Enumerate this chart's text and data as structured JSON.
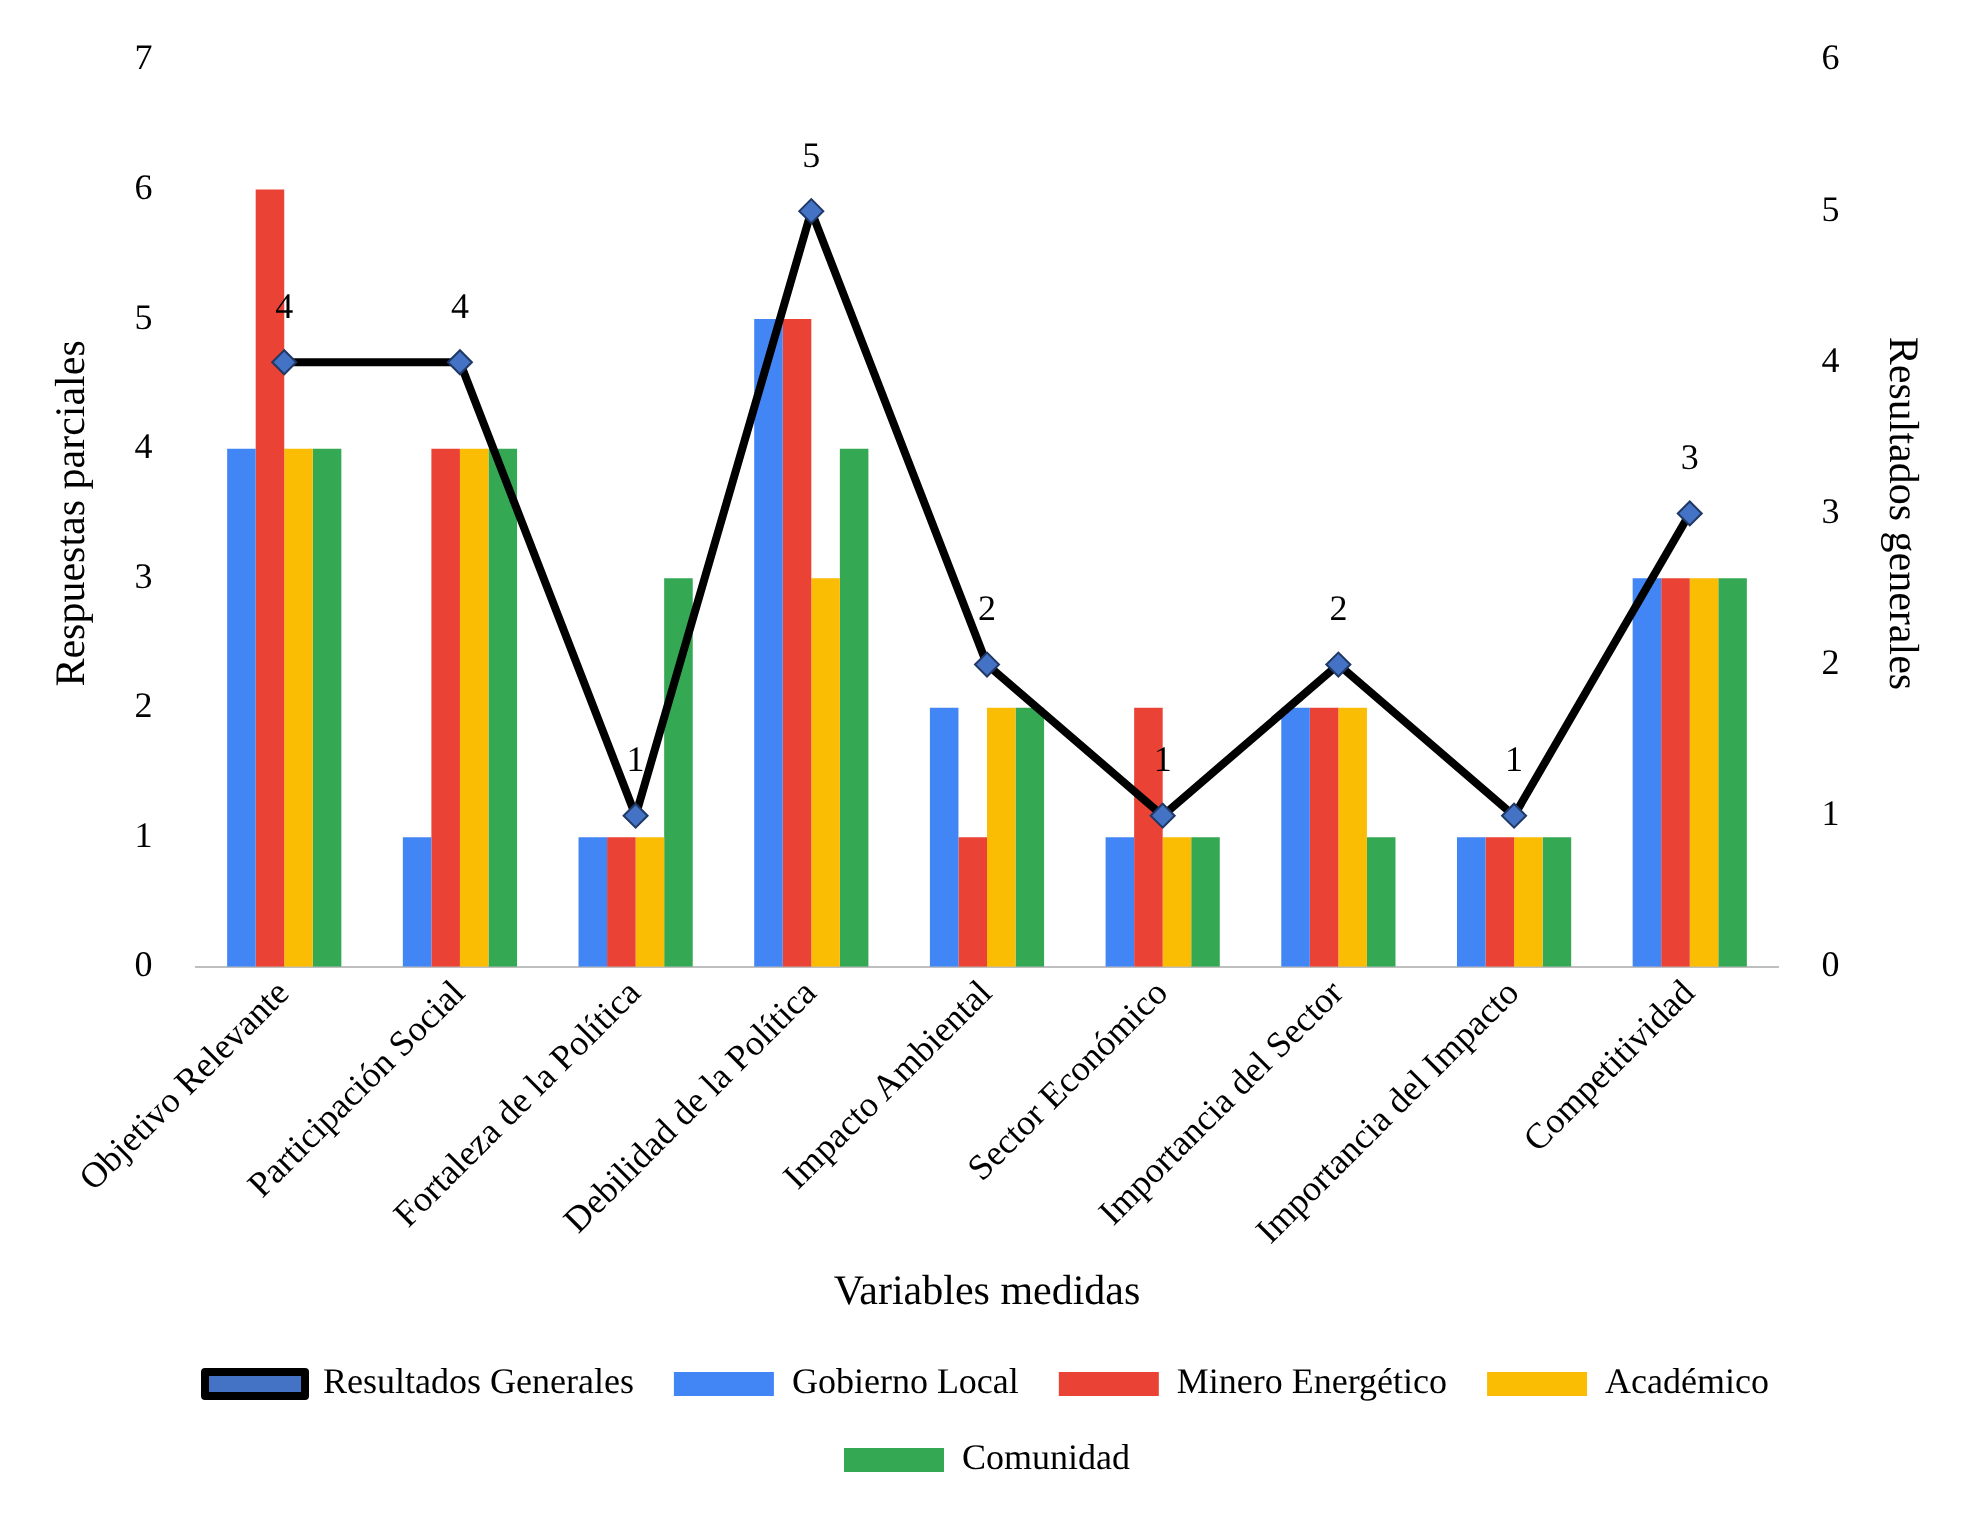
{
  "chart_data": {
    "type": "bar",
    "xlabel": "Variables medidas",
    "ylabel": "Respuestas parciales",
    "y2label": "Resultados generales",
    "categories": [
      "Objetivo Relevante",
      "Participación Social",
      "Fortaleza de la Política",
      "Debilidad de la Política",
      "Impacto Ambiental",
      "Sector Económico",
      "Importancia del Sector",
      "Importancia del Impacto",
      "Competitividad"
    ],
    "series": [
      {
        "name": "Gobierno Local",
        "color": "#4285f4",
        "values": [
          4,
          1,
          1,
          5,
          2,
          1,
          2,
          1,
          3
        ]
      },
      {
        "name": "Minero Energético",
        "color": "#ea4335",
        "values": [
          6,
          4,
          1,
          5,
          1,
          2,
          2,
          1,
          3
        ]
      },
      {
        "name": "Académico",
        "color": "#fbbc04",
        "values": [
          4,
          4,
          1,
          3,
          2,
          1,
          2,
          1,
          3
        ]
      },
      {
        "name": "Comunidad",
        "color": "#34a853",
        "values": [
          4,
          4,
          3,
          4,
          2,
          1,
          1,
          1,
          3
        ]
      },
      {
        "name": "Resultados Generales",
        "type": "line",
        "axis": "y2",
        "color": "#000000",
        "values": [
          4,
          4,
          1,
          5,
          2,
          1,
          2,
          1,
          3
        ],
        "value_labels": [
          "4",
          "4",
          "1",
          "5",
          "2",
          "1",
          "2",
          "1",
          "3"
        ]
      }
    ],
    "ylim": [
      0,
      7
    ],
    "yticks": [
      0,
      1,
      2,
      3,
      4,
      5,
      6,
      7
    ],
    "y2lim": [
      0,
      6
    ],
    "y2ticks": [
      0,
      1,
      2,
      3,
      4,
      5,
      6
    ],
    "grid": false,
    "legend": "bottom",
    "marker": "diamond",
    "line_style": "solid"
  }
}
